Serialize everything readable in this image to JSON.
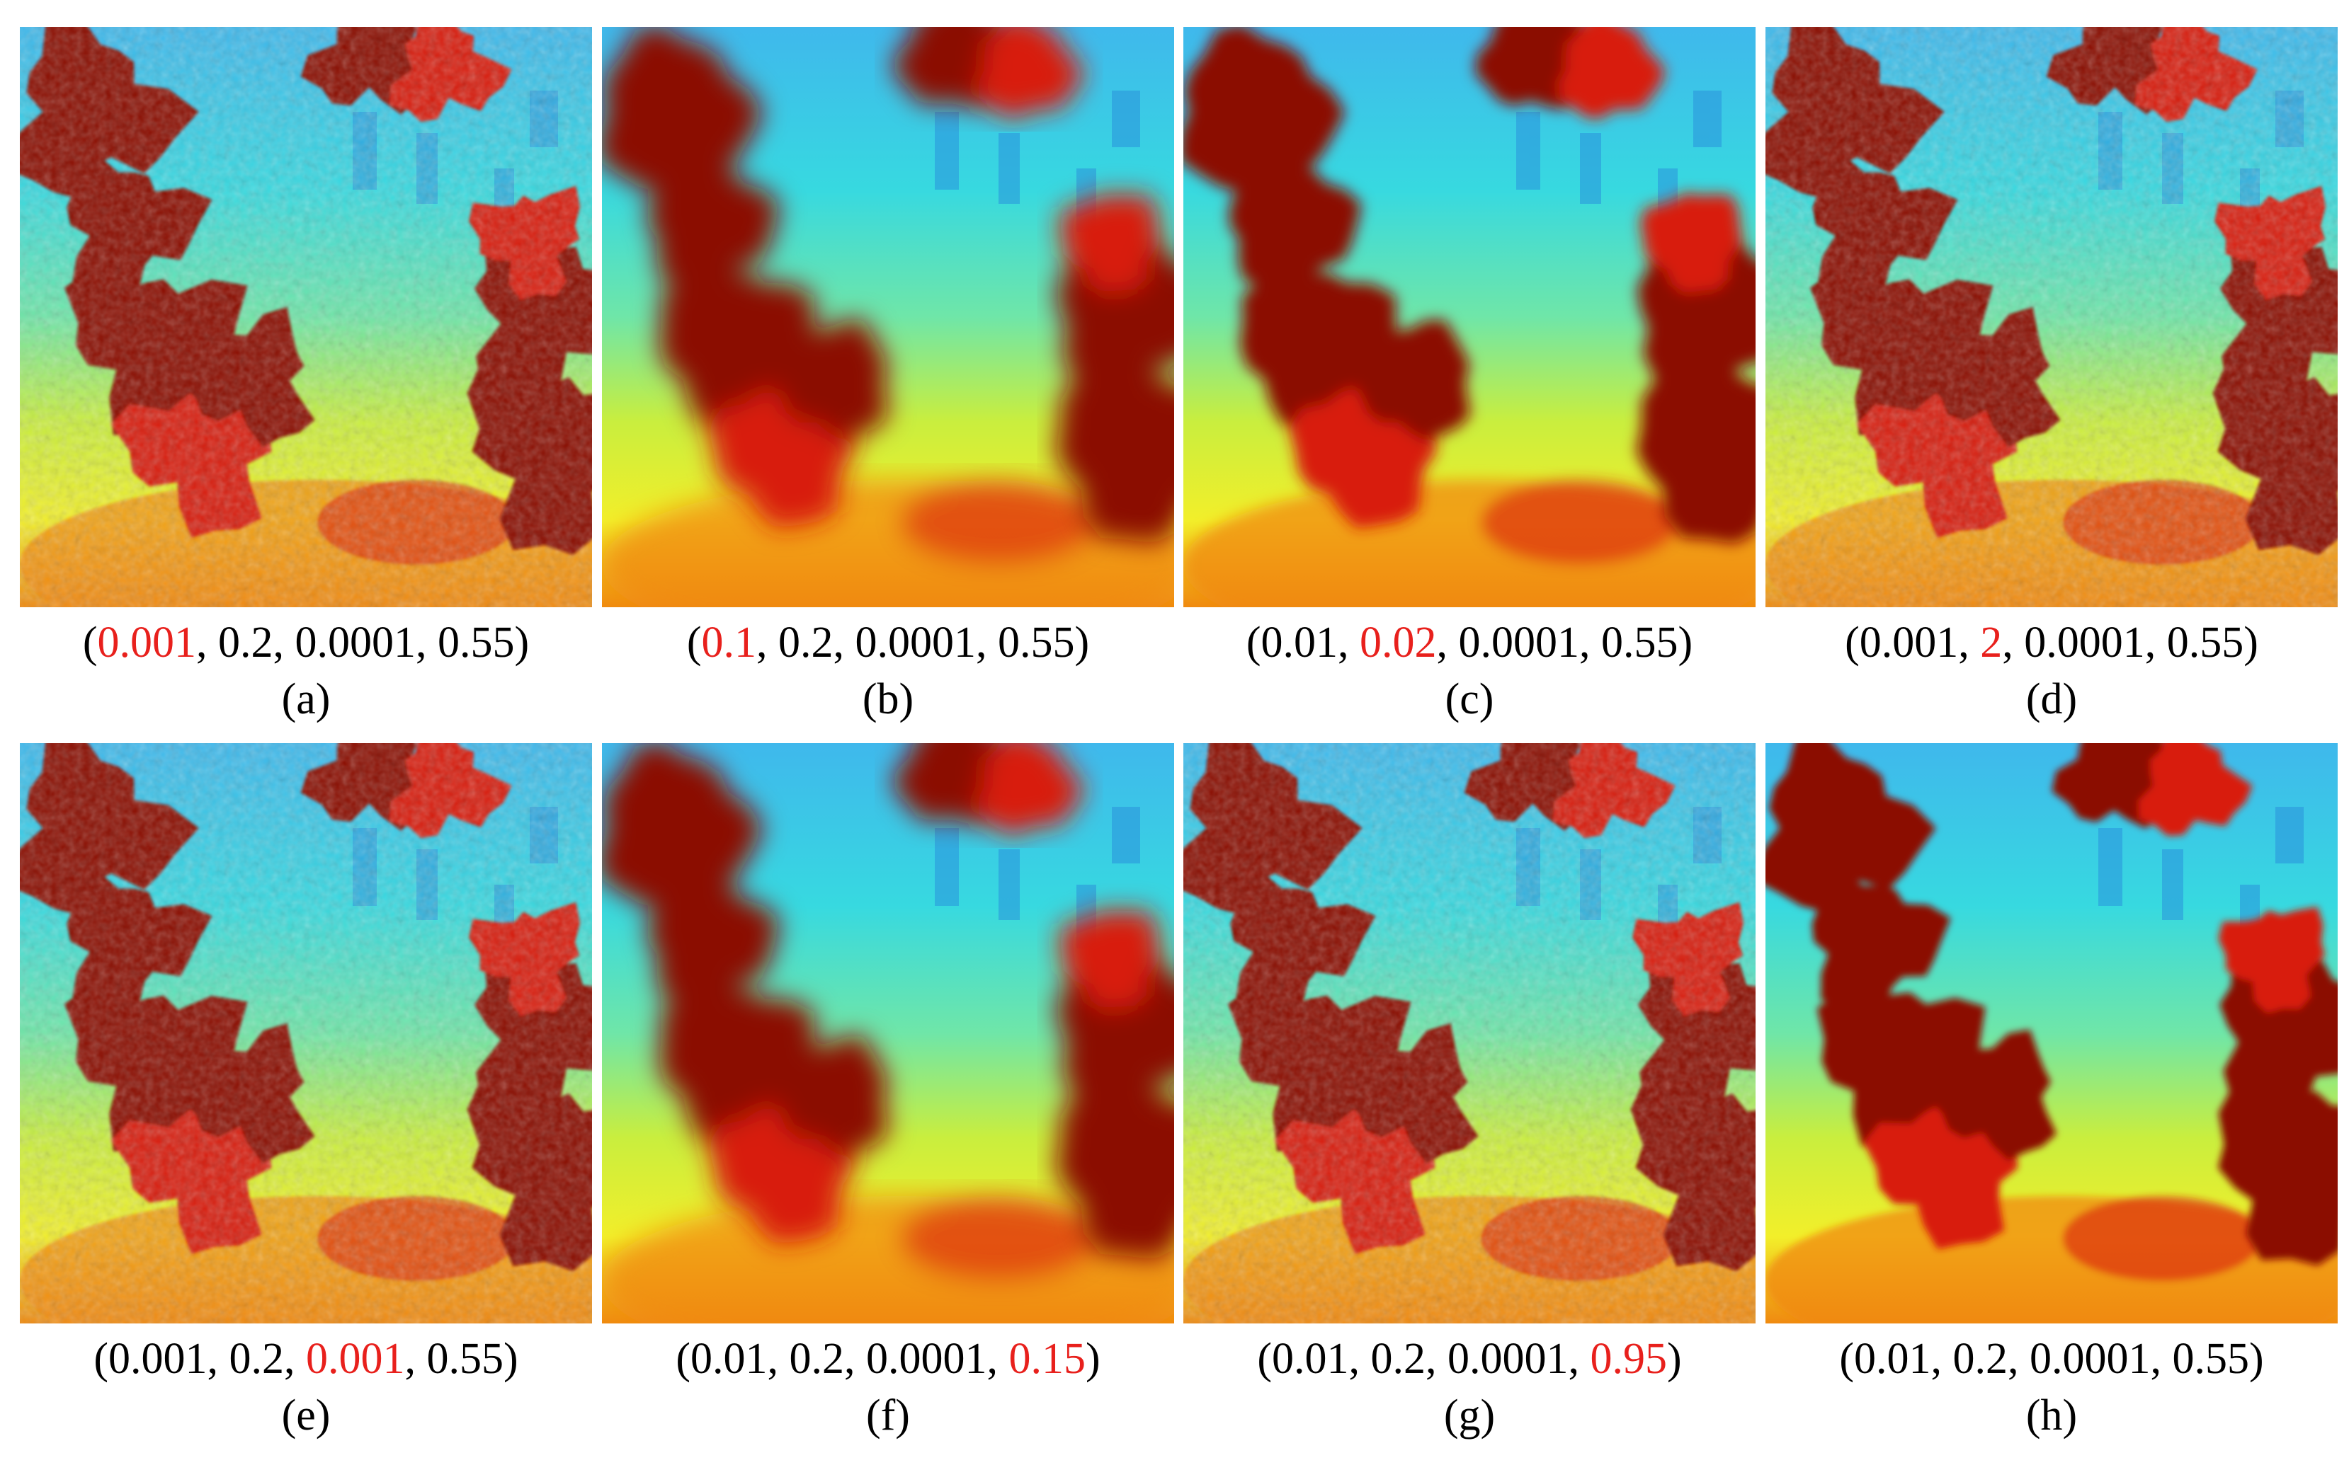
{
  "panels": [
    {
      "id": "a",
      "label": "(a)",
      "params": [
        "0.001",
        "0.2",
        "0.0001",
        "0.55"
      ],
      "highlight": 0,
      "style": "noisy"
    },
    {
      "id": "b",
      "label": "(b)",
      "params": [
        "0.1",
        "0.2",
        "0.0001",
        "0.55"
      ],
      "highlight": 0,
      "style": "smooth"
    },
    {
      "id": "c",
      "label": "(c)",
      "params": [
        "0.01",
        "0.02",
        "0.0001",
        "0.55"
      ],
      "highlight": 1,
      "style": "flat"
    },
    {
      "id": "d",
      "label": "(d)",
      "params": [
        "0.001",
        "2",
        "0.0001",
        "0.55"
      ],
      "highlight": 1,
      "style": "noisy"
    },
    {
      "id": "e",
      "label": "(e)",
      "params": [
        "0.001",
        "0.2",
        "0.001",
        "0.55"
      ],
      "highlight": 2,
      "style": "noisy"
    },
    {
      "id": "f",
      "label": "(f)",
      "params": [
        "0.01",
        "0.2",
        "0.0001",
        "0.15"
      ],
      "highlight": 3,
      "style": "smooth"
    },
    {
      "id": "g",
      "label": "(g)",
      "params": [
        "0.01",
        "0.2",
        "0.0001",
        "0.95"
      ],
      "highlight": 3,
      "style": "noisy"
    },
    {
      "id": "h",
      "label": "(h)",
      "params": [
        "0.01",
        "0.2",
        "0.0001",
        "0.55"
      ],
      "highlight": -1,
      "style": "medium"
    }
  ],
  "colors": {
    "highlight": "#e8201c",
    "text": "#000000",
    "dark_red": "#8b0a05",
    "red": "#d81e0c",
    "orange": "#f08a10",
    "yellow": "#f2ef2a",
    "yellow_green": "#c9ee3e",
    "green_cyan": "#6fe6a8",
    "cyan": "#37d9e0",
    "light_blue": "#3fb8ec",
    "blue": "#2a92dc"
  }
}
